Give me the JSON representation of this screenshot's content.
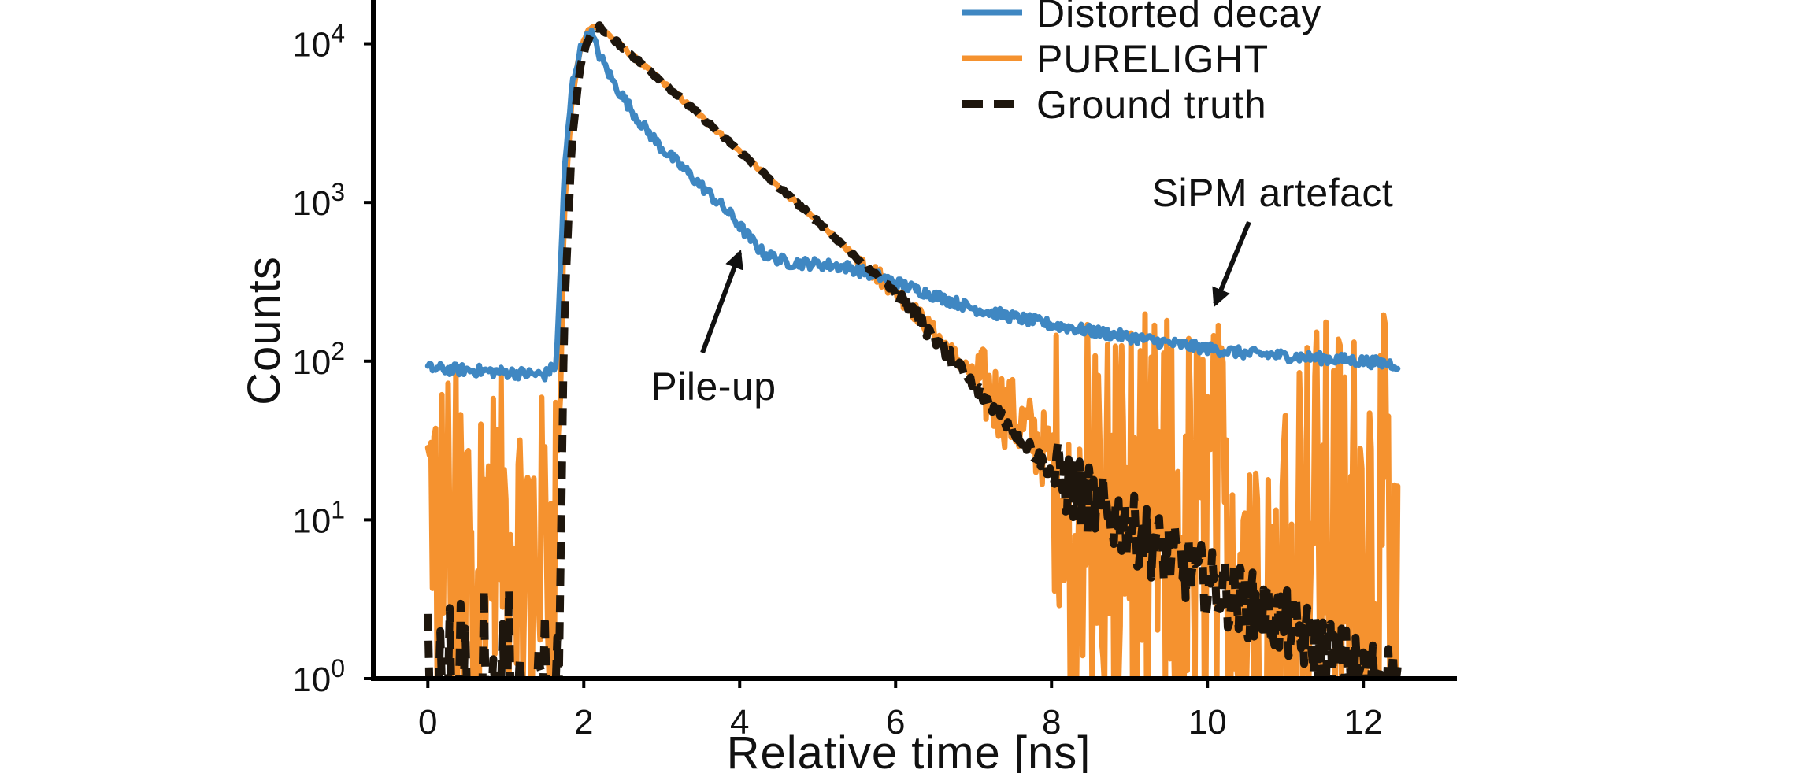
{
  "chart_data": {
    "type": "line",
    "title": "",
    "xlabel": "Relative time [ns]",
    "ylabel": "Counts",
    "xlim": [
      -0.7,
      13.2
    ],
    "ylim_log10": [
      0,
      4.35
    ],
    "yscale": "log",
    "grid": false,
    "legend_position": "top-right",
    "x_ticks": [
      {
        "value": 0,
        "label": "0"
      },
      {
        "value": 2,
        "label": "2"
      },
      {
        "value": 4,
        "label": "4"
      },
      {
        "value": 6,
        "label": "6"
      },
      {
        "value": 8,
        "label": "8"
      },
      {
        "value": 10,
        "label": "10"
      },
      {
        "value": 12,
        "label": "12"
      }
    ],
    "y_ticks": [
      {
        "value": 1,
        "base": "10",
        "exp": "0"
      },
      {
        "value": 10,
        "base": "10",
        "exp": "1"
      },
      {
        "value": 100,
        "base": "10",
        "exp": "2"
      },
      {
        "value": 1000,
        "base": "10",
        "exp": "3"
      },
      {
        "value": 10000,
        "base": "10",
        "exp": "4"
      }
    ],
    "series": [
      {
        "name": "Distorted decay",
        "color": "#3f87c2",
        "style": "solid",
        "x": [
          0,
          0.5,
          1.0,
          1.5,
          1.65,
          1.75,
          1.85,
          1.95,
          2.05,
          2.1,
          2.2,
          2.4,
          2.7,
          3.0,
          3.3,
          3.6,
          3.9,
          4.1,
          4.3,
          4.6,
          5.0,
          5.4,
          5.8,
          6.2,
          6.6,
          7.0,
          7.5,
          8.0,
          8.5,
          9.0,
          9.5,
          10.0,
          10.5,
          11.0,
          11.5,
          12.0,
          12.45
        ],
        "y": [
          90,
          88,
          85,
          82,
          95,
          1500,
          5500,
          9000,
          11000,
          11500,
          8500,
          5500,
          3300,
          2200,
          1600,
          1150,
          820,
          620,
          480,
          420,
          410,
          390,
          340,
          290,
          250,
          215,
          190,
          170,
          155,
          142,
          130,
          120,
          112,
          108,
          104,
          100,
          95
        ]
      },
      {
        "name": "PURELIGHT",
        "color": "#f5922f",
        "style": "solid",
        "x": [
          0,
          0.2,
          0.5,
          0.8,
          1.0,
          1.3,
          1.6,
          1.7,
          1.75,
          1.85,
          1.95,
          2.05,
          2.15,
          2.2,
          2.5,
          3.0,
          3.5,
          4.0,
          4.5,
          5.0,
          5.5,
          6.0,
          6.5,
          7.0,
          7.5,
          8.0,
          8.3,
          8.6,
          9.0,
          9.5,
          10.0,
          10.5,
          11.0,
          11.5,
          12.0,
          12.45
        ],
        "y": [
          15,
          13,
          12,
          11,
          10,
          9,
          8,
          60,
          900,
          4500,
          9000,
          12000,
          13000,
          12800,
          9500,
          5800,
          3500,
          2100,
          1250,
          760,
          450,
          280,
          150,
          80,
          45,
          25,
          18,
          14,
          12,
          11,
          11,
          11,
          11,
          11,
          11,
          11
        ]
      },
      {
        "name": "Ground truth",
        "color": "#1e160d",
        "style": "dashed",
        "x": [
          0,
          1.6,
          1.68,
          1.75,
          1.85,
          1.95,
          2.05,
          2.15,
          2.2,
          2.5,
          3.0,
          3.5,
          4.0,
          4.5,
          5.0,
          5.5,
          6.0,
          6.5,
          7.0,
          7.5,
          8.0,
          8.5,
          9.0,
          9.5,
          10.0,
          10.5,
          11.0,
          11.5,
          12.0,
          12.45
        ],
        "y": [
          1,
          1,
          1,
          200,
          2500,
          7000,
          10500,
          12500,
          12800,
          9500,
          5800,
          3500,
          2100,
          1250,
          760,
          450,
          270,
          140,
          70,
          38,
          20,
          13,
          9,
          6,
          4,
          3,
          2.2,
          1.5,
          1.1,
          1
        ]
      }
    ],
    "annotations": [
      {
        "text": "Pile-up",
        "points_to": {
          "x": 4.0,
          "y": 480
        }
      },
      {
        "text": "SiPM artefact",
        "points_to": {
          "x": 10.1,
          "y": 230
        }
      }
    ]
  }
}
